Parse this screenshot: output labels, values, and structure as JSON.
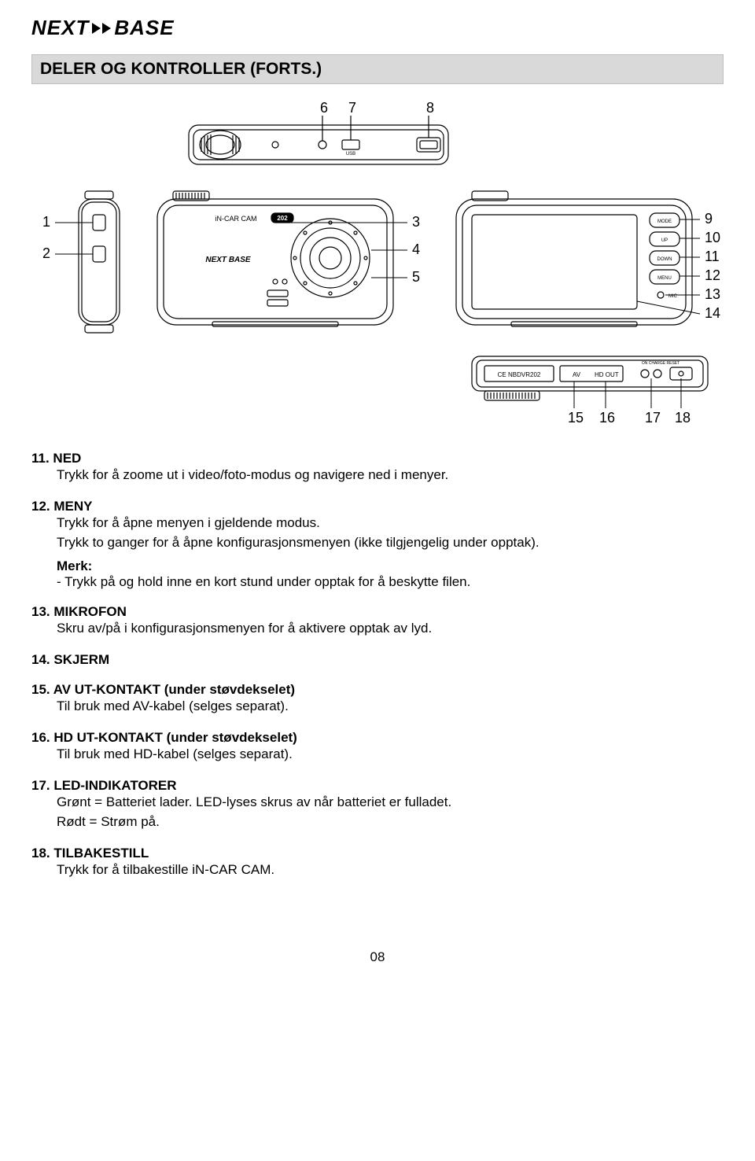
{
  "logo": {
    "part1": "NEXT",
    "part2": "BASE"
  },
  "title": "DELER OG KONTROLLER (FORTS.)",
  "diagram": {
    "top_labels": [
      "6",
      "7",
      "8"
    ],
    "left_labels": [
      "1",
      "2"
    ],
    "mid_labels": [
      "3",
      "4",
      "5"
    ],
    "right_labels": [
      "9",
      "10",
      "11",
      "12",
      "13",
      "14"
    ],
    "bottom_labels": [
      "15",
      "16",
      "17",
      "18"
    ],
    "camera_brand": "NEXT BASE",
    "camera_model": "iN-CAR CAM",
    "model_num": "202",
    "buttons": [
      "MODE",
      "UP",
      "DOWN",
      "MENU"
    ],
    "mic_label": "MIC",
    "bottom_text": {
      "cert": "NBDVR202",
      "av": "AV",
      "hd": "HD OUT",
      "charge": "ON CHARGE  RESET"
    },
    "usb_label": "USB"
  },
  "items": [
    {
      "num": "11.",
      "name": "NED",
      "lines": [
        "Trykk for å zoome ut i video/foto-modus og navigere ned i menyer."
      ]
    },
    {
      "num": "12.",
      "name": "MENY",
      "lines": [
        "Trykk for å åpne menyen i gjeldende modus.",
        "Trykk to ganger for å åpne konfigurasjonsmenyen (ikke tilgjengelig under opptak)."
      ],
      "note_label": "Merk:",
      "note_lines": [
        "- Trykk på og hold inne en kort stund under opptak for å beskytte filen."
      ]
    },
    {
      "num": "13.",
      "name": "MIKROFON",
      "lines": [
        "Skru av/på i konfigurasjonsmenyen for å aktivere opptak av lyd."
      ]
    },
    {
      "num": "14.",
      "name": "SKJERM",
      "lines": []
    },
    {
      "num": "15.",
      "name": "AV UT-KONTAKT (under støvdekselet)",
      "lines": [
        "Til bruk med AV-kabel (selges separat)."
      ]
    },
    {
      "num": "16.",
      "name": "HD UT-KONTAKT (under støvdekselet)",
      "lines": [
        "Til bruk med HD-kabel (selges separat)."
      ]
    },
    {
      "num": "17.",
      "name": "LED-INDIKATORER",
      "lines": [
        "Grønt = Batteriet lader. LED-lyses skrus av når batteriet er fulladet.",
        "Rødt = Strøm på."
      ]
    },
    {
      "num": "18.",
      "name": "TILBAKESTILL",
      "lines": [
        "Trykk for å tilbakestille iN-CAR CAM."
      ]
    }
  ],
  "page_number": "08"
}
